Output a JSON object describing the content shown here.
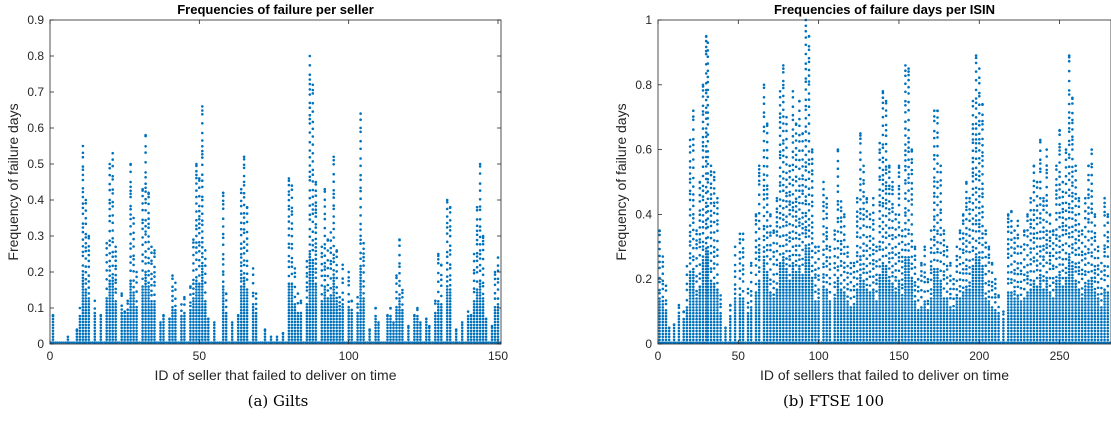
{
  "chart_data": [
    {
      "type": "scatter",
      "title": "Frequencies of failure per seller",
      "xlabel": "ID of seller that failed to deliver on time",
      "ylabel": "Frequency of failure days",
      "xlim": [
        0,
        151
      ],
      "ylim": [
        0,
        0.9
      ],
      "xticks": [
        0,
        50,
        100,
        150
      ],
      "yticks": [
        0,
        0.1,
        0.2,
        0.3,
        0.4,
        0.5,
        0.6,
        0.7,
        0.8,
        0.9
      ],
      "grid": false,
      "marker_color": "#0072BD",
      "caption": "(a) Gilts",
      "columns": [
        {
          "x": 1,
          "max": 0.08
        },
        {
          "x": 6,
          "max": 0.02
        },
        {
          "x": 9,
          "max": 0.04
        },
        {
          "x": 10,
          "max": 0.1
        },
        {
          "x": 11,
          "max": 0.55
        },
        {
          "x": 12,
          "max": 0.4
        },
        {
          "x": 13,
          "max": 0.3
        },
        {
          "x": 15,
          "max": 0.12
        },
        {
          "x": 17,
          "max": 0.08
        },
        {
          "x": 19,
          "max": 0.28
        },
        {
          "x": 20,
          "max": 0.5
        },
        {
          "x": 21,
          "max": 0.53
        },
        {
          "x": 22,
          "max": 0.27
        },
        {
          "x": 24,
          "max": 0.14
        },
        {
          "x": 25,
          "max": 0.09
        },
        {
          "x": 26,
          "max": 0.12
        },
        {
          "x": 27,
          "max": 0.5
        },
        {
          "x": 28,
          "max": 0.35
        },
        {
          "x": 29,
          "max": 0.2
        },
        {
          "x": 31,
          "max": 0.43
        },
        {
          "x": 32,
          "max": 0.58
        },
        {
          "x": 33,
          "max": 0.42
        },
        {
          "x": 34,
          "max": 0.27
        },
        {
          "x": 35,
          "max": 0.26
        },
        {
          "x": 37,
          "max": 0.06
        },
        {
          "x": 38,
          "max": 0.08
        },
        {
          "x": 40,
          "max": 0.07
        },
        {
          "x": 41,
          "max": 0.19
        },
        {
          "x": 42,
          "max": 0.17
        },
        {
          "x": 44,
          "max": 0.11
        },
        {
          "x": 45,
          "max": 0.13
        },
        {
          "x": 47,
          "max": 0.16
        },
        {
          "x": 48,
          "max": 0.29
        },
        {
          "x": 49,
          "max": 0.5
        },
        {
          "x": 50,
          "max": 0.46
        },
        {
          "x": 51,
          "max": 0.66
        },
        {
          "x": 52,
          "max": 0.26
        },
        {
          "x": 53,
          "max": 0.07
        },
        {
          "x": 55,
          "max": 0.06
        },
        {
          "x": 58,
          "max": 0.42
        },
        {
          "x": 59,
          "max": 0.14
        },
        {
          "x": 61,
          "max": 0.06
        },
        {
          "x": 63,
          "max": 0.08
        },
        {
          "x": 64,
          "max": 0.43
        },
        {
          "x": 65,
          "max": 0.52
        },
        {
          "x": 66,
          "max": 0.38
        },
        {
          "x": 68,
          "max": 0.21
        },
        {
          "x": 69,
          "max": 0.14
        },
        {
          "x": 72,
          "max": 0.04
        },
        {
          "x": 74,
          "max": 0.02
        },
        {
          "x": 76,
          "max": 0.02
        },
        {
          "x": 78,
          "max": 0.03
        },
        {
          "x": 80,
          "max": 0.46
        },
        {
          "x": 81,
          "max": 0.44
        },
        {
          "x": 82,
          "max": 0.21
        },
        {
          "x": 83,
          "max": 0.14
        },
        {
          "x": 84,
          "max": 0.12
        },
        {
          "x": 86,
          "max": 0.23
        },
        {
          "x": 87,
          "max": 0.8
        },
        {
          "x": 88,
          "max": 0.72
        },
        {
          "x": 89,
          "max": 0.45
        },
        {
          "x": 91,
          "max": 0.27
        },
        {
          "x": 92,
          "max": 0.43
        },
        {
          "x": 93,
          "max": 0.29
        },
        {
          "x": 94,
          "max": 0.31
        },
        {
          "x": 95,
          "max": 0.52
        },
        {
          "x": 96,
          "max": 0.26
        },
        {
          "x": 97,
          "max": 0.13
        },
        {
          "x": 98,
          "max": 0.22
        },
        {
          "x": 100,
          "max": 0.2
        },
        {
          "x": 101,
          "max": 0.12
        },
        {
          "x": 103,
          "max": 0.13
        },
        {
          "x": 104,
          "max": 0.64
        },
        {
          "x": 105,
          "max": 0.28
        },
        {
          "x": 107,
          "max": 0.04
        },
        {
          "x": 109,
          "max": 0.1
        },
        {
          "x": 110,
          "max": 0.06
        },
        {
          "x": 113,
          "max": 0.08
        },
        {
          "x": 114,
          "max": 0.1
        },
        {
          "x": 115,
          "max": 0.06
        },
        {
          "x": 116,
          "max": 0.19
        },
        {
          "x": 117,
          "max": 0.29
        },
        {
          "x": 118,
          "max": 0.15
        },
        {
          "x": 120,
          "max": 0.05
        },
        {
          "x": 122,
          "max": 0.08
        },
        {
          "x": 123,
          "max": 0.1
        },
        {
          "x": 124,
          "max": 0.06
        },
        {
          "x": 126,
          "max": 0.07
        },
        {
          "x": 127,
          "max": 0.05
        },
        {
          "x": 129,
          "max": 0.12
        },
        {
          "x": 130,
          "max": 0.25
        },
        {
          "x": 131,
          "max": 0.22
        },
        {
          "x": 133,
          "max": 0.4
        },
        {
          "x": 134,
          "max": 0.38
        },
        {
          "x": 136,
          "max": 0.04
        },
        {
          "x": 138,
          "max": 0.06
        },
        {
          "x": 140,
          "max": 0.09
        },
        {
          "x": 141,
          "max": 0.08
        },
        {
          "x": 142,
          "max": 0.25
        },
        {
          "x": 143,
          "max": 0.38
        },
        {
          "x": 144,
          "max": 0.5
        },
        {
          "x": 145,
          "max": 0.3
        },
        {
          "x": 146,
          "max": 0.07
        },
        {
          "x": 148,
          "max": 0.05
        },
        {
          "x": 149,
          "max": 0.2
        },
        {
          "x": 150,
          "max": 0.24
        }
      ]
    },
    {
      "type": "scatter",
      "title": "Frequencies of failure days per ISIN",
      "xlabel": "ID of sellers that failed to deliver on time",
      "ylabel": "Frequency of failure days",
      "xlim": [
        0,
        282
      ],
      "ylim": [
        0,
        1
      ],
      "xticks": [
        0,
        50,
        100,
        150,
        200,
        250
      ],
      "yticks": [
        0,
        0.2,
        0.4,
        0.6,
        0.8,
        1
      ],
      "ytick_labels": [
        "0",
        "0.2",
        "0.4",
        "0.6",
        "0.8",
        "1"
      ],
      "grid": false,
      "marker_color": "#0072BD",
      "caption": "(b) FTSE 100",
      "columns": [
        {
          "x": 1,
          "max": 0.35
        },
        {
          "x": 3,
          "max": 0.27
        },
        {
          "x": 5,
          "max": 0.18
        },
        {
          "x": 7,
          "max": 0.05
        },
        {
          "x": 10,
          "max": 0.06
        },
        {
          "x": 13,
          "max": 0.12
        },
        {
          "x": 16,
          "max": 0.1
        },
        {
          "x": 18,
          "max": 0.24
        },
        {
          "x": 20,
          "max": 0.63
        },
        {
          "x": 22,
          "max": 0.72
        },
        {
          "x": 24,
          "max": 0.35
        },
        {
          "x": 26,
          "max": 0.5
        },
        {
          "x": 28,
          "max": 0.8
        },
        {
          "x": 30,
          "max": 0.95
        },
        {
          "x": 31,
          "max": 0.93
        },
        {
          "x": 33,
          "max": 0.55
        },
        {
          "x": 35,
          "max": 0.53
        },
        {
          "x": 37,
          "max": 0.45
        },
        {
          "x": 39,
          "max": 0.15
        },
        {
          "x": 42,
          "max": 0.05
        },
        {
          "x": 45,
          "max": 0.12
        },
        {
          "x": 48,
          "max": 0.3
        },
        {
          "x": 51,
          "max": 0.34
        },
        {
          "x": 53,
          "max": 0.34
        },
        {
          "x": 56,
          "max": 0.17
        },
        {
          "x": 58,
          "max": 0.25
        },
        {
          "x": 61,
          "max": 0.4
        },
        {
          "x": 63,
          "max": 0.55
        },
        {
          "x": 66,
          "max": 0.8
        },
        {
          "x": 68,
          "max": 0.68
        },
        {
          "x": 70,
          "max": 0.4
        },
        {
          "x": 72,
          "max": 0.35
        },
        {
          "x": 74,
          "max": 0.45
        },
        {
          "x": 76,
          "max": 0.78
        },
        {
          "x": 78,
          "max": 0.86
        },
        {
          "x": 80,
          "max": 0.7
        },
        {
          "x": 82,
          "max": 0.55
        },
        {
          "x": 84,
          "max": 0.78
        },
        {
          "x": 86,
          "max": 0.68
        },
        {
          "x": 88,
          "max": 0.75
        },
        {
          "x": 90,
          "max": 0.65
        },
        {
          "x": 92,
          "max": 1.0
        },
        {
          "x": 94,
          "max": 0.95
        },
        {
          "x": 96,
          "max": 0.6
        },
        {
          "x": 98,
          "max": 0.3
        },
        {
          "x": 100,
          "max": 0.3
        },
        {
          "x": 103,
          "max": 0.5
        },
        {
          "x": 105,
          "max": 0.45
        },
        {
          "x": 107,
          "max": 0.3
        },
        {
          "x": 110,
          "max": 0.35
        },
        {
          "x": 112,
          "max": 0.6
        },
        {
          "x": 114,
          "max": 0.44
        },
        {
          "x": 116,
          "max": 0.4
        },
        {
          "x": 118,
          "max": 0.3
        },
        {
          "x": 120,
          "max": 0.25
        },
        {
          "x": 122,
          "max": 0.25
        },
        {
          "x": 124,
          "max": 0.45
        },
        {
          "x": 126,
          "max": 0.65
        },
        {
          "x": 128,
          "max": 0.55
        },
        {
          "x": 130,
          "max": 0.45
        },
        {
          "x": 132,
          "max": 0.4
        },
        {
          "x": 134,
          "max": 0.45
        },
        {
          "x": 136,
          "max": 0.3
        },
        {
          "x": 138,
          "max": 0.62
        },
        {
          "x": 140,
          "max": 0.78
        },
        {
          "x": 142,
          "max": 0.75
        },
        {
          "x": 144,
          "max": 0.55
        },
        {
          "x": 146,
          "max": 0.5
        },
        {
          "x": 148,
          "max": 0.4
        },
        {
          "x": 150,
          "max": 0.55
        },
        {
          "x": 152,
          "max": 0.35
        },
        {
          "x": 154,
          "max": 0.86
        },
        {
          "x": 156,
          "max": 0.85
        },
        {
          "x": 158,
          "max": 0.6
        },
        {
          "x": 160,
          "max": 0.3
        },
        {
          "x": 162,
          "max": 0.2
        },
        {
          "x": 164,
          "max": 0.25
        },
        {
          "x": 166,
          "max": 0.3
        },
        {
          "x": 168,
          "max": 0.2
        },
        {
          "x": 170,
          "max": 0.35
        },
        {
          "x": 172,
          "max": 0.72
        },
        {
          "x": 174,
          "max": 0.72
        },
        {
          "x": 176,
          "max": 0.55
        },
        {
          "x": 178,
          "max": 0.35
        },
        {
          "x": 180,
          "max": 0.3
        },
        {
          "x": 182,
          "max": 0.25
        },
        {
          "x": 184,
          "max": 0.2
        },
        {
          "x": 186,
          "max": 0.3
        },
        {
          "x": 188,
          "max": 0.35
        },
        {
          "x": 190,
          "max": 0.4
        },
        {
          "x": 192,
          "max": 0.5
        },
        {
          "x": 194,
          "max": 0.45
        },
        {
          "x": 196,
          "max": 0.75
        },
        {
          "x": 198,
          "max": 0.89
        },
        {
          "x": 200,
          "max": 0.85
        },
        {
          "x": 202,
          "max": 0.74
        },
        {
          "x": 204,
          "max": 0.35
        },
        {
          "x": 206,
          "max": 0.3
        },
        {
          "x": 208,
          "max": 0.25
        },
        {
          "x": 210,
          "max": 0.2
        },
        {
          "x": 212,
          "max": 0.15
        },
        {
          "x": 215,
          "max": 0.1
        },
        {
          "x": 218,
          "max": 0.4
        },
        {
          "x": 220,
          "max": 0.41
        },
        {
          "x": 222,
          "max": 0.35
        },
        {
          "x": 224,
          "max": 0.38
        },
        {
          "x": 226,
          "max": 0.3
        },
        {
          "x": 228,
          "max": 0.35
        },
        {
          "x": 230,
          "max": 0.4
        },
        {
          "x": 232,
          "max": 0.45
        },
        {
          "x": 234,
          "max": 0.55
        },
        {
          "x": 236,
          "max": 0.5
        },
        {
          "x": 238,
          "max": 0.63
        },
        {
          "x": 240,
          "max": 0.45
        },
        {
          "x": 242,
          "max": 0.6
        },
        {
          "x": 244,
          "max": 0.4
        },
        {
          "x": 246,
          "max": 0.35
        },
        {
          "x": 248,
          "max": 0.55
        },
        {
          "x": 250,
          "max": 0.66
        },
        {
          "x": 252,
          "max": 0.5
        },
        {
          "x": 254,
          "max": 0.6
        },
        {
          "x": 256,
          "max": 0.89
        },
        {
          "x": 258,
          "max": 0.76
        },
        {
          "x": 260,
          "max": 0.55
        },
        {
          "x": 262,
          "max": 0.45
        },
        {
          "x": 264,
          "max": 0.35
        },
        {
          "x": 266,
          "max": 0.45
        },
        {
          "x": 268,
          "max": 0.55
        },
        {
          "x": 270,
          "max": 0.6
        },
        {
          "x": 272,
          "max": 0.4
        },
        {
          "x": 274,
          "max": 0.3
        },
        {
          "x": 276,
          "max": 0.25
        },
        {
          "x": 278,
          "max": 0.45
        },
        {
          "x": 280,
          "max": 0.4
        }
      ]
    }
  ]
}
